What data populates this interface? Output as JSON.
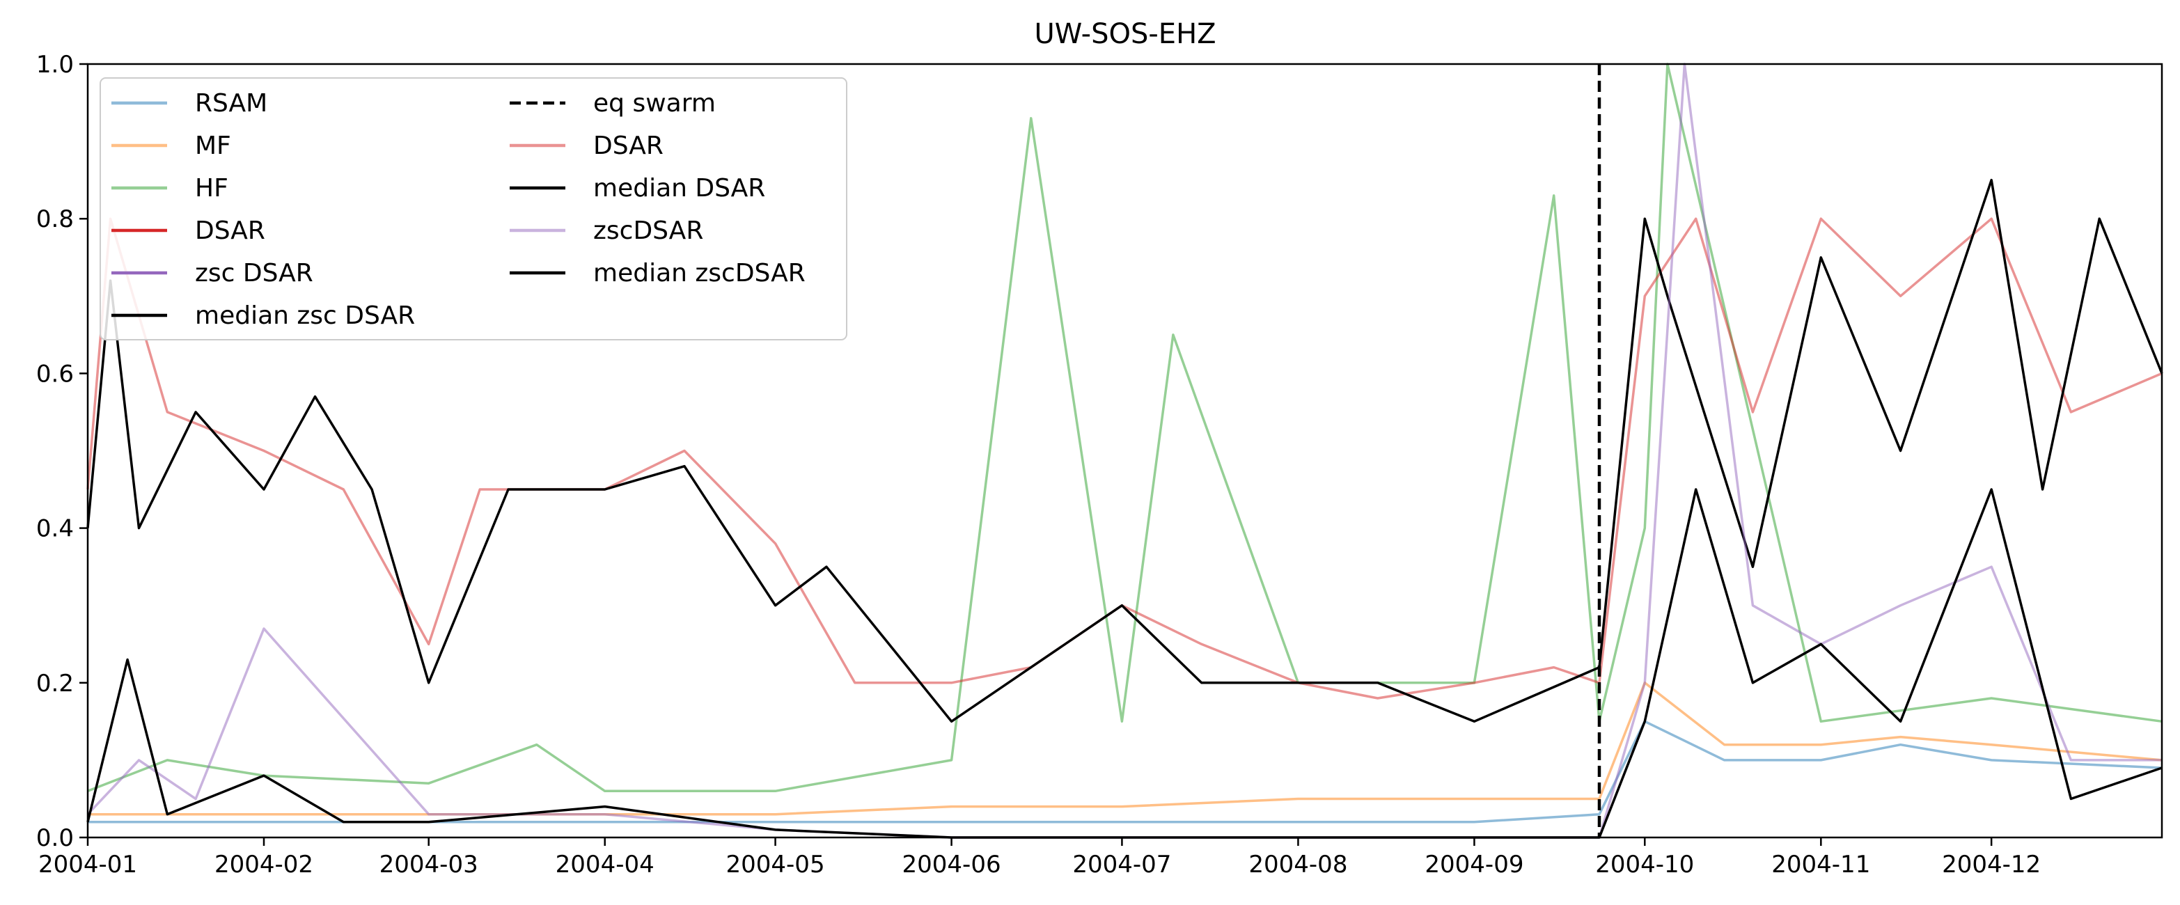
{
  "chart_data": {
    "type": "line",
    "title": "UW-SOS-EHZ",
    "xlabel": "",
    "ylabel": "",
    "x_range": [
      "2004-01-01",
      "2004-12-31"
    ],
    "ylim": [
      0.0,
      1.0
    ],
    "x_ticks": [
      "2004-01",
      "2004-02",
      "2004-03",
      "2004-04",
      "2004-05",
      "2004-06",
      "2004-07",
      "2004-08",
      "2004-09",
      "2004-10",
      "2004-11",
      "2004-12"
    ],
    "y_ticks": [
      "0.0",
      "0.2",
      "0.4",
      "0.6",
      "0.8",
      "1.0"
    ],
    "grid": false,
    "legend_position": "top-left",
    "legend": [
      {
        "label": "RSAM",
        "color": "#1f77b4",
        "style": "solid",
        "alpha": 0.5
      },
      {
        "label": "MF",
        "color": "#ff7f0e",
        "style": "solid",
        "alpha": 0.5
      },
      {
        "label": "HF",
        "color": "#2ca02c",
        "style": "solid",
        "alpha": 0.5
      },
      {
        "label": "DSAR",
        "color": "#d62728",
        "style": "solid",
        "alpha": 1.0
      },
      {
        "label": "zsc DSAR",
        "color": "#9467bd",
        "style": "solid",
        "alpha": 1.0
      },
      {
        "label": "median zsc DSAR",
        "color": "#000000",
        "style": "solid",
        "alpha": 1.0
      },
      {
        "label": "eq swarm",
        "color": "#000000",
        "style": "dashed",
        "alpha": 1.0
      },
      {
        "label": "DSAR",
        "color": "#d62728",
        "style": "solid",
        "alpha": 0.5
      },
      {
        "label": "median DSAR",
        "color": "#000000",
        "style": "solid",
        "alpha": 1.0
      },
      {
        "label": "zscDSAR",
        "color": "#9467bd",
        "style": "solid",
        "alpha": 0.5
      },
      {
        "label": "median zscDSAR",
        "color": "#000000",
        "style": "solid",
        "alpha": 1.0
      }
    ],
    "eq_swarm_date": "2004-09-23",
    "series": [
      {
        "name": "RSAM",
        "color": "#1f77b4",
        "alpha": 0.5,
        "x": [
          "2004-01-01",
          "2004-02-01",
          "2004-03-01",
          "2004-04-01",
          "2004-05-01",
          "2004-06-01",
          "2004-07-01",
          "2004-08-01",
          "2004-09-01",
          "2004-09-23",
          "2004-10-01",
          "2004-10-15",
          "2004-11-01",
          "2004-11-15",
          "2004-12-01",
          "2004-12-31"
        ],
        "values": [
          0.02,
          0.02,
          0.02,
          0.02,
          0.02,
          0.02,
          0.02,
          0.02,
          0.02,
          0.03,
          0.15,
          0.1,
          0.1,
          0.12,
          0.1,
          0.09
        ]
      },
      {
        "name": "MF",
        "color": "#ff7f0e",
        "alpha": 0.5,
        "x": [
          "2004-01-01",
          "2004-02-01",
          "2004-03-01",
          "2004-04-01",
          "2004-05-01",
          "2004-06-01",
          "2004-07-01",
          "2004-08-01",
          "2004-09-01",
          "2004-09-23",
          "2004-10-01",
          "2004-10-15",
          "2004-11-01",
          "2004-11-15",
          "2004-12-01",
          "2004-12-31"
        ],
        "values": [
          0.03,
          0.03,
          0.03,
          0.03,
          0.03,
          0.04,
          0.04,
          0.05,
          0.05,
          0.05,
          0.2,
          0.12,
          0.12,
          0.13,
          0.12,
          0.1
        ]
      },
      {
        "name": "HF",
        "color": "#2ca02c",
        "alpha": 0.5,
        "x": [
          "2004-01-01",
          "2004-01-15",
          "2004-02-01",
          "2004-03-01",
          "2004-03-20",
          "2004-04-01",
          "2004-05-01",
          "2004-06-01",
          "2004-06-15",
          "2004-07-01",
          "2004-07-10",
          "2004-08-01",
          "2004-09-01",
          "2004-09-15",
          "2004-09-23",
          "2004-10-01",
          "2004-10-05",
          "2004-11-01",
          "2004-12-01",
          "2004-12-31"
        ],
        "values": [
          0.06,
          0.1,
          0.08,
          0.07,
          0.12,
          0.06,
          0.06,
          0.1,
          0.93,
          0.15,
          0.65,
          0.2,
          0.2,
          0.83,
          0.15,
          0.4,
          1.0,
          0.15,
          0.18,
          0.15
        ]
      },
      {
        "name": "DSAR",
        "color": "#d62728",
        "alpha": 0.5,
        "x": [
          "2004-01-01",
          "2004-01-05",
          "2004-01-15",
          "2004-02-01",
          "2004-02-15",
          "2004-03-01",
          "2004-03-10",
          "2004-04-01",
          "2004-04-15",
          "2004-05-01",
          "2004-05-15",
          "2004-06-01",
          "2004-06-15",
          "2004-07-01",
          "2004-07-15",
          "2004-08-01",
          "2004-08-15",
          "2004-09-01",
          "2004-09-15",
          "2004-09-23",
          "2004-10-01",
          "2004-10-10",
          "2004-10-20",
          "2004-11-01",
          "2004-11-15",
          "2004-12-01",
          "2004-12-15",
          "2004-12-31"
        ],
        "values": [
          0.45,
          0.8,
          0.55,
          0.5,
          0.45,
          0.25,
          0.45,
          0.45,
          0.5,
          0.38,
          0.2,
          0.2,
          0.22,
          0.3,
          0.25,
          0.2,
          0.18,
          0.2,
          0.22,
          0.2,
          0.7,
          0.8,
          0.55,
          0.8,
          0.7,
          0.8,
          0.55,
          0.6
        ]
      },
      {
        "name": "median DSAR",
        "color": "#000000",
        "alpha": 1.0,
        "x": [
          "2004-01-01",
          "2004-01-05",
          "2004-01-10",
          "2004-01-20",
          "2004-02-01",
          "2004-02-10",
          "2004-02-20",
          "2004-03-01",
          "2004-03-15",
          "2004-04-01",
          "2004-04-15",
          "2004-05-01",
          "2004-05-10",
          "2004-06-01",
          "2004-06-15",
          "2004-07-01",
          "2004-07-15",
          "2004-08-01",
          "2004-08-15",
          "2004-09-01",
          "2004-09-23",
          "2004-10-01",
          "2004-10-05",
          "2004-10-20",
          "2004-11-01",
          "2004-11-15",
          "2004-12-01",
          "2004-12-10",
          "2004-12-20",
          "2004-12-31"
        ],
        "values": [
          0.4,
          0.72,
          0.4,
          0.55,
          0.45,
          0.57,
          0.45,
          0.2,
          0.45,
          0.45,
          0.48,
          0.3,
          0.35,
          0.15,
          0.22,
          0.3,
          0.2,
          0.2,
          0.2,
          0.15,
          0.22,
          0.8,
          0.7,
          0.35,
          0.75,
          0.5,
          0.85,
          0.45,
          0.8,
          0.6
        ]
      },
      {
        "name": "zscDSAR",
        "color": "#9467bd",
        "alpha": 0.5,
        "x": [
          "2004-01-01",
          "2004-01-10",
          "2004-01-20",
          "2004-02-01",
          "2004-03-01",
          "2004-04-01",
          "2004-05-01",
          "2004-06-01",
          "2004-07-01",
          "2004-08-01",
          "2004-09-01",
          "2004-09-23",
          "2004-10-01",
          "2004-10-08",
          "2004-10-20",
          "2004-11-01",
          "2004-11-15",
          "2004-12-01",
          "2004-12-15",
          "2004-12-31"
        ],
        "values": [
          0.03,
          0.1,
          0.05,
          0.27,
          0.03,
          0.03,
          0.01,
          0.0,
          0.0,
          0.0,
          0.0,
          0.0,
          0.2,
          1.0,
          0.3,
          0.25,
          0.3,
          0.35,
          0.1,
          0.1
        ]
      },
      {
        "name": "median zscDSAR",
        "color": "#000000",
        "alpha": 1.0,
        "x": [
          "2004-01-01",
          "2004-01-08",
          "2004-01-15",
          "2004-02-01",
          "2004-02-15",
          "2004-03-01",
          "2004-04-01",
          "2004-05-01",
          "2004-06-01",
          "2004-07-01",
          "2004-08-01",
          "2004-09-01",
          "2004-09-23",
          "2004-10-01",
          "2004-10-10",
          "2004-10-20",
          "2004-11-01",
          "2004-11-15",
          "2004-12-01",
          "2004-12-15",
          "2004-12-31"
        ],
        "values": [
          0.02,
          0.23,
          0.03,
          0.08,
          0.02,
          0.02,
          0.04,
          0.01,
          0.0,
          0.0,
          0.0,
          0.0,
          0.0,
          0.15,
          0.45,
          0.2,
          0.25,
          0.15,
          0.45,
          0.05,
          0.09
        ]
      }
    ]
  }
}
